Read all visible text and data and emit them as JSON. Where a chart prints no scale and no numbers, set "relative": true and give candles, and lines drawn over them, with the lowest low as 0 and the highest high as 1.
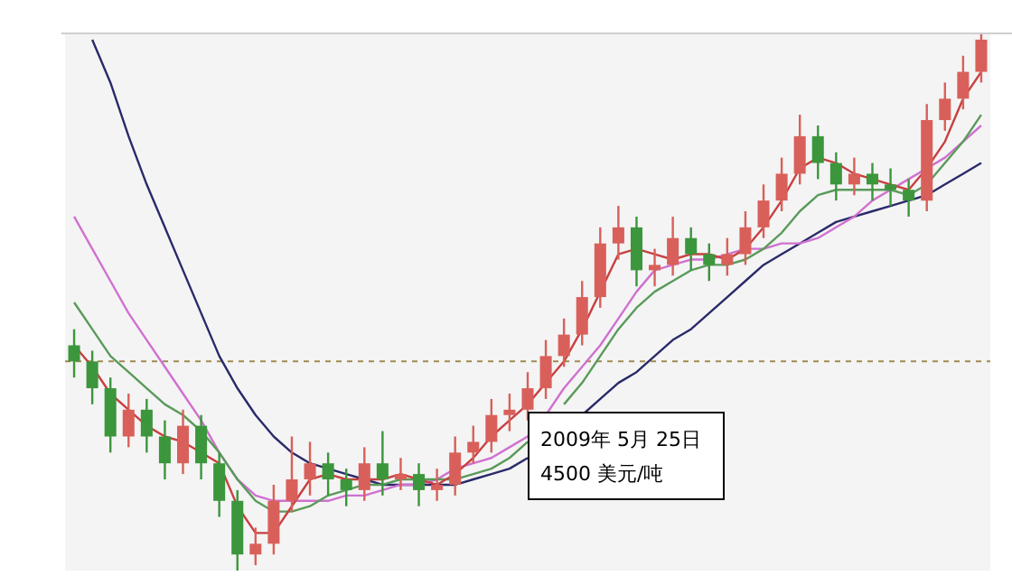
{
  "chart_data": {
    "type": "candlestick",
    "relative": true,
    "categories": [
      null,
      null,
      null,
      null,
      null,
      null,
      null,
      null,
      null,
      null,
      null,
      null,
      null,
      null,
      null,
      null,
      null,
      null,
      null,
      null,
      null,
      null,
      null,
      null,
      null,
      null,
      null,
      null,
      null,
      null,
      null,
      null,
      null,
      null,
      null,
      null,
      null,
      null,
      null,
      null,
      null,
      null,
      null,
      null,
      null,
      null,
      null,
      null,
      null,
      null,
      null
    ],
    "ohlc": [
      [
        0.42,
        0.45,
        0.36,
        0.39
      ],
      [
        0.39,
        0.41,
        0.31,
        0.34
      ],
      [
        0.34,
        0.36,
        0.22,
        0.25
      ],
      [
        0.25,
        0.33,
        0.23,
        0.3
      ],
      [
        0.3,
        0.32,
        0.22,
        0.25
      ],
      [
        0.25,
        0.28,
        0.17,
        0.2
      ],
      [
        0.2,
        0.3,
        0.18,
        0.27
      ],
      [
        0.27,
        0.29,
        0.17,
        0.2
      ],
      [
        0.2,
        0.22,
        0.1,
        0.13
      ],
      [
        0.13,
        0.15,
        0.0,
        0.03
      ],
      [
        0.03,
        0.08,
        0.01,
        0.05
      ],
      [
        0.05,
        0.16,
        0.03,
        0.13
      ],
      [
        0.13,
        0.25,
        0.11,
        0.17
      ],
      [
        0.17,
        0.24,
        0.14,
        0.2
      ],
      [
        0.2,
        0.22,
        0.14,
        0.17
      ],
      [
        0.17,
        0.19,
        0.12,
        0.15
      ],
      [
        0.15,
        0.23,
        0.13,
        0.2
      ],
      [
        0.2,
        0.26,
        0.14,
        0.17
      ],
      [
        0.17,
        0.21,
        0.15,
        0.18
      ],
      [
        0.18,
        0.2,
        0.12,
        0.15
      ],
      [
        0.15,
        0.19,
        0.13,
        0.16
      ],
      [
        0.16,
        0.25,
        0.14,
        0.22
      ],
      [
        0.22,
        0.27,
        0.2,
        0.24
      ],
      [
        0.24,
        0.32,
        0.22,
        0.29
      ],
      [
        0.29,
        0.33,
        0.26,
        0.3
      ],
      [
        0.3,
        0.37,
        0.28,
        0.34
      ],
      [
        0.34,
        0.43,
        0.32,
        0.4
      ],
      [
        0.4,
        0.47,
        0.38,
        0.44
      ],
      [
        0.44,
        0.54,
        0.42,
        0.51
      ],
      [
        0.51,
        0.64,
        0.49,
        0.61
      ],
      [
        0.61,
        0.68,
        0.58,
        0.64
      ],
      [
        0.64,
        0.66,
        0.53,
        0.56
      ],
      [
        0.56,
        0.6,
        0.53,
        0.57
      ],
      [
        0.57,
        0.66,
        0.55,
        0.62
      ],
      [
        0.62,
        0.64,
        0.56,
        0.59
      ],
      [
        0.59,
        0.61,
        0.54,
        0.57
      ],
      [
        0.57,
        0.62,
        0.55,
        0.59
      ],
      [
        0.59,
        0.67,
        0.57,
        0.64
      ],
      [
        0.64,
        0.72,
        0.62,
        0.69
      ],
      [
        0.69,
        0.77,
        0.67,
        0.74
      ],
      [
        0.74,
        0.85,
        0.72,
        0.81
      ],
      [
        0.81,
        0.83,
        0.73,
        0.76
      ],
      [
        0.76,
        0.78,
        0.69,
        0.72
      ],
      [
        0.72,
        0.77,
        0.7,
        0.74
      ],
      [
        0.74,
        0.76,
        0.69,
        0.72
      ],
      [
        0.72,
        0.75,
        0.68,
        0.71
      ],
      [
        0.71,
        0.73,
        0.66,
        0.69
      ],
      [
        0.69,
        0.87,
        0.67,
        0.84
      ],
      [
        0.84,
        0.91,
        0.82,
        0.88
      ],
      [
        0.88,
        0.96,
        0.86,
        0.93
      ],
      [
        0.93,
        1.0,
        0.91,
        0.99
      ]
    ],
    "colors": [
      "#3c963c",
      "#3c963c",
      "#3c963c",
      "#d9605a",
      "#3c963c",
      "#3c963c",
      "#d9605a",
      "#3c963c",
      "#3c963c",
      "#3c963c",
      "#d9605a",
      "#d9605a",
      "#d9605a",
      "#d9605a",
      "#3c963c",
      "#3c963c",
      "#d9605a",
      "#3c963c",
      "#d9605a",
      "#3c963c",
      "#d9605a",
      "#d9605a",
      "#d9605a",
      "#d9605a",
      "#d9605a",
      "#d9605a",
      "#d9605a",
      "#d9605a",
      "#d9605a",
      "#d9605a",
      "#d9605a",
      "#3c963c",
      "#d9605a",
      "#d9605a",
      "#3c963c",
      "#3c963c",
      "#d9605a",
      "#d9605a",
      "#d9605a",
      "#d9605a",
      "#d9605a",
      "#3c963c",
      "#3c963c",
      "#d9605a",
      "#3c963c",
      "#3c963c",
      "#3c963c",
      "#d9605a",
      "#d9605a",
      "#d9605a",
      "#d9605a"
    ],
    "series": [
      {
        "type": "line",
        "color": "#c84040",
        "values": [
          0.42,
          0.38,
          0.33,
          0.3,
          0.27,
          0.25,
          0.24,
          0.22,
          0.2,
          0.12,
          0.07,
          0.07,
          0.12,
          0.17,
          0.18,
          0.17,
          0.17,
          0.17,
          0.18,
          0.17,
          0.16,
          0.18,
          0.21,
          0.25,
          0.28,
          0.31,
          0.35,
          0.39,
          0.45,
          0.52,
          0.59,
          0.6,
          0.59,
          0.58,
          0.59,
          0.59,
          0.58,
          0.6,
          0.64,
          0.69,
          0.75,
          0.77,
          0.76,
          0.74,
          0.73,
          0.72,
          0.71,
          0.75,
          0.8,
          0.88,
          0.93
        ]
      },
      {
        "type": "line",
        "color": "#5a9a5a",
        "values": [
          0.5,
          0.45,
          0.4,
          0.37,
          0.34,
          0.31,
          0.29,
          0.26,
          0.22,
          0.17,
          0.13,
          0.11,
          0.11,
          0.12,
          0.14,
          0.15,
          0.16,
          0.16,
          0.17,
          0.17,
          0.17,
          0.17,
          0.18,
          0.19,
          0.21,
          0.24,
          null,
          0.31,
          0.35,
          0.4,
          0.45,
          0.49,
          0.52,
          0.54,
          0.56,
          0.57,
          0.57,
          0.58,
          0.6,
          0.63,
          0.67,
          0.7,
          0.71,
          0.71,
          0.71,
          0.71,
          0.7,
          0.72,
          0.76,
          0.8,
          0.85
        ]
      },
      {
        "type": "line",
        "color": "#d070d0",
        "values": [
          0.66,
          0.6,
          0.54,
          0.48,
          0.43,
          0.38,
          0.33,
          0.28,
          0.22,
          0.17,
          0.14,
          0.13,
          0.13,
          0.13,
          0.13,
          0.14,
          0.14,
          0.15,
          0.16,
          0.16,
          0.17,
          0.19,
          0.2,
          0.21,
          0.23,
          0.25,
          0.29,
          0.34,
          0.38,
          0.42,
          0.47,
          0.52,
          0.56,
          0.57,
          0.58,
          0.58,
          0.59,
          0.6,
          0.6,
          0.61,
          0.61,
          0.62,
          0.64,
          0.66,
          0.69,
          0.71,
          0.73,
          0.75,
          0.77,
          0.8,
          0.83
        ]
      },
      {
        "type": "line",
        "color": "#2a2a6a",
        "values": [
          null,
          0.99,
          0.91,
          0.81,
          0.72,
          0.64,
          0.56,
          0.48,
          0.4,
          0.34,
          0.29,
          0.25,
          0.22,
          0.2,
          0.19,
          0.18,
          0.17,
          0.16,
          0.16,
          0.16,
          0.16,
          0.16,
          0.17,
          0.18,
          0.19,
          0.21,
          null,
          null,
          0.29,
          0.32,
          0.35,
          0.37,
          0.4,
          0.43,
          0.45,
          0.48,
          0.51,
          0.54,
          0.57,
          0.59,
          0.61,
          0.63,
          0.65,
          0.66,
          0.67,
          0.68,
          0.69,
          0.7,
          0.72,
          0.74,
          0.76
        ]
      }
    ],
    "ref_lines": [
      {
        "axis": "y",
        "value": 0.39,
        "color": "#a08a50",
        "line_style": "dashed"
      }
    ],
    "annotations": [
      "2009年 5月 25日",
      "4500 美元/吨"
    ],
    "legend": false
  }
}
